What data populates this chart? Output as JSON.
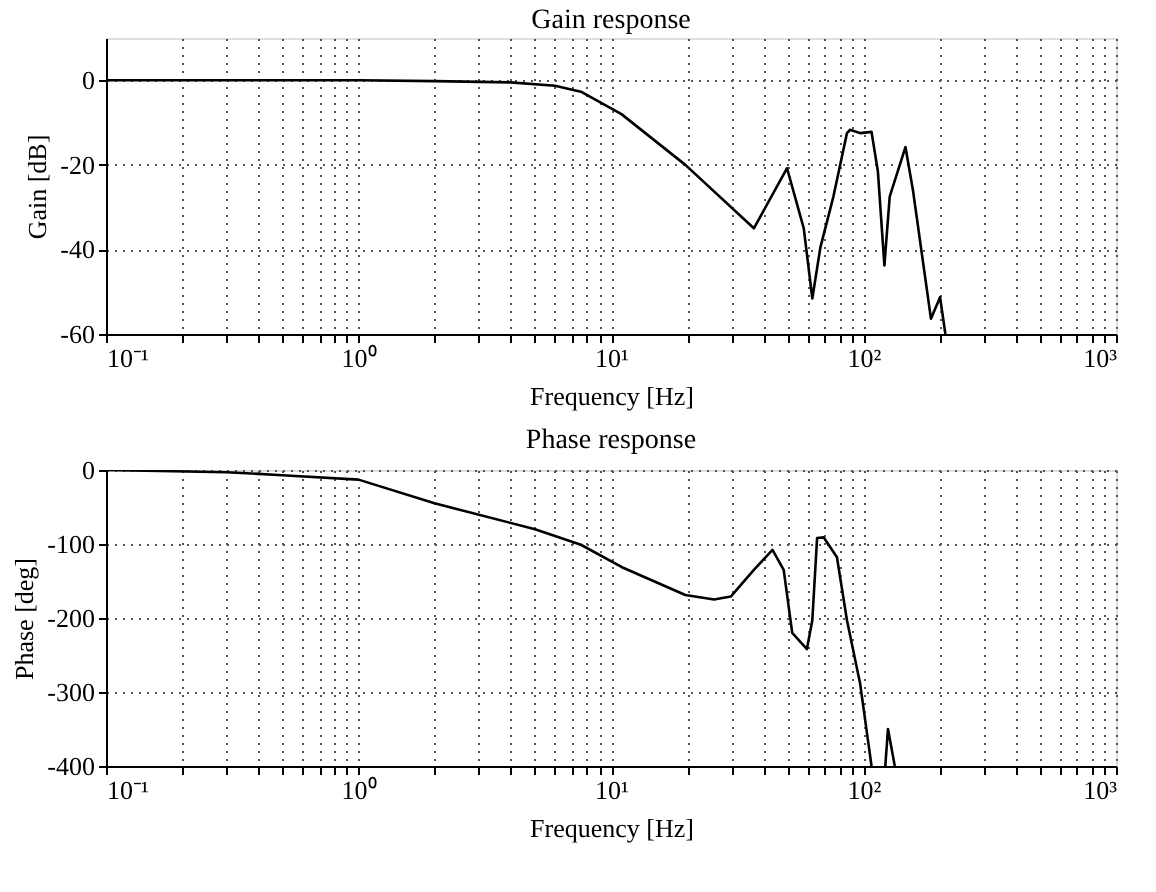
{
  "chart_data": [
    {
      "type": "line",
      "title": "Gain response",
      "xlabel": "Frequency [Hz]",
      "ylabel": "Gain [dB]",
      "log": "x",
      "grid": true,
      "line_style": "solid",
      "marker": "none",
      "xlim": [
        0.1,
        1000
      ],
      "ylim": [
        -60,
        10
      ],
      "xticks": [
        {
          "value": 0.1,
          "label": "10⁻¹"
        },
        {
          "value": 0.2,
          "label": null
        },
        {
          "value": 0.3,
          "label": null
        },
        {
          "value": 0.4,
          "label": null
        },
        {
          "value": 0.5,
          "label": null
        },
        {
          "value": 0.6,
          "label": null
        },
        {
          "value": 0.7,
          "label": null
        },
        {
          "value": 0.8,
          "label": null
        },
        {
          "value": 0.9,
          "label": null
        },
        {
          "value": 1,
          "label": "10⁰"
        },
        {
          "value": 2,
          "label": null
        },
        {
          "value": 3,
          "label": null
        },
        {
          "value": 4,
          "label": null
        },
        {
          "value": 5,
          "label": null
        },
        {
          "value": 6,
          "label": null
        },
        {
          "value": 7,
          "label": null
        },
        {
          "value": 8,
          "label": null
        },
        {
          "value": 9,
          "label": null
        },
        {
          "value": 10,
          "label": "10¹"
        },
        {
          "value": 20,
          "label": null
        },
        {
          "value": 30,
          "label": null
        },
        {
          "value": 40,
          "label": null
        },
        {
          "value": 50,
          "label": null
        },
        {
          "value": 60,
          "label": null
        },
        {
          "value": 70,
          "label": null
        },
        {
          "value": 80,
          "label": null
        },
        {
          "value": 90,
          "label": null
        },
        {
          "value": 100,
          "label": "10²"
        },
        {
          "value": 200,
          "label": null
        },
        {
          "value": 300,
          "label": null
        },
        {
          "value": 400,
          "label": null
        },
        {
          "value": 500,
          "label": null
        },
        {
          "value": 600,
          "label": null
        },
        {
          "value": 700,
          "label": null
        },
        {
          "value": 800,
          "label": null
        },
        {
          "value": 900,
          "label": null
        },
        {
          "value": 1000,
          "label": "10³"
        }
      ],
      "yticks": [
        -60,
        -40,
        -20,
        0
      ],
      "series": [
        {
          "color": "#000000",
          "x": [
            0.1,
            0.3,
            1,
            2,
            4,
            6,
            7.6,
            11,
            19.7,
            36.8,
            49.8,
            58,
            62.7,
            67.5,
            76,
            86,
            88.5,
            97,
            107.6,
            114,
            121,
            127,
            146.6,
            157,
            185,
            201,
            211
          ],
          "values": [
            0,
            0,
            0,
            -0.2,
            -0.5,
            -1.3,
            -2.7,
            -8,
            -20,
            -35,
            -20.8,
            -35,
            -51.6,
            -39.5,
            -27.5,
            -12.5,
            -11.7,
            -12.5,
            -12.2,
            -21.5,
            -43.8,
            -27.5,
            -15.8,
            -26,
            -56.4,
            -51.3,
            -60
          ]
        }
      ]
    },
    {
      "type": "line",
      "title": "Phase response",
      "xlabel": "Frequency [Hz]",
      "ylabel": "Phase [deg]",
      "log": "x",
      "grid": true,
      "line_style": "solid",
      "marker": "none",
      "xlim": [
        0.1,
        1000
      ],
      "ylim": [
        -400,
        0
      ],
      "xticks": [
        {
          "value": 0.1,
          "label": "10⁻¹"
        },
        {
          "value": 0.2,
          "label": null
        },
        {
          "value": 0.3,
          "label": null
        },
        {
          "value": 0.4,
          "label": null
        },
        {
          "value": 0.5,
          "label": null
        },
        {
          "value": 0.6,
          "label": null
        },
        {
          "value": 0.7,
          "label": null
        },
        {
          "value": 0.8,
          "label": null
        },
        {
          "value": 0.9,
          "label": null
        },
        {
          "value": 1,
          "label": "10⁰"
        },
        {
          "value": 2,
          "label": null
        },
        {
          "value": 3,
          "label": null
        },
        {
          "value": 4,
          "label": null
        },
        {
          "value": 5,
          "label": null
        },
        {
          "value": 6,
          "label": null
        },
        {
          "value": 7,
          "label": null
        },
        {
          "value": 8,
          "label": null
        },
        {
          "value": 9,
          "label": null
        },
        {
          "value": 10,
          "label": "10¹"
        },
        {
          "value": 20,
          "label": null
        },
        {
          "value": 30,
          "label": null
        },
        {
          "value": 40,
          "label": null
        },
        {
          "value": 50,
          "label": null
        },
        {
          "value": 60,
          "label": null
        },
        {
          "value": 70,
          "label": null
        },
        {
          "value": 80,
          "label": null
        },
        {
          "value": 90,
          "label": null
        },
        {
          "value": 100,
          "label": "10²"
        },
        {
          "value": 200,
          "label": null
        },
        {
          "value": 300,
          "label": null
        },
        {
          "value": 400,
          "label": null
        },
        {
          "value": 500,
          "label": null
        },
        {
          "value": 600,
          "label": null
        },
        {
          "value": 700,
          "label": null
        },
        {
          "value": 800,
          "label": null
        },
        {
          "value": 900,
          "label": null
        },
        {
          "value": 1000,
          "label": "10³"
        }
      ],
      "yticks": [
        -400,
        -300,
        -200,
        -100,
        0
      ],
      "series": [
        {
          "color": "#000000",
          "x": [
            0.1,
            0.3,
            0.5,
            1,
            2,
            5,
            7.6,
            11,
            19.7,
            25.6,
            29.8,
            36.8,
            43.6,
            48.3,
            52.2,
            59.7,
            62.7,
            65.5,
            69.5,
            78.5,
            86,
            97,
            107.6,
            115,
            122,
            125,
            133
          ],
          "values": [
            0,
            -3,
            -7,
            -13,
            -45,
            -80,
            -101,
            -131,
            -169,
            -175,
            -171,
            -135,
            -108,
            -135,
            -220,
            -242,
            -203,
            -92,
            -91,
            -118,
            -203,
            -289,
            -400,
            null,
            -400,
            -350,
            -400
          ]
        }
      ]
    }
  ]
}
